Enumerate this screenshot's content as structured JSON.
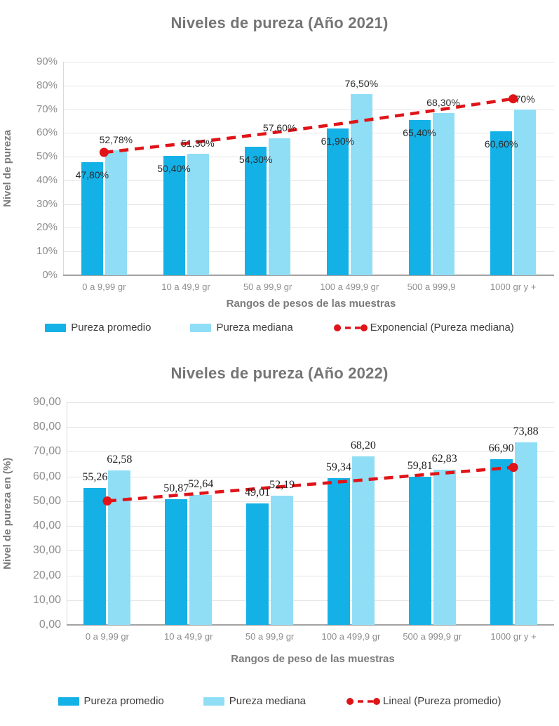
{
  "chart_data": [
    {
      "type": "bar-with-trendline",
      "title": "Niveles de pureza (Año 2021)",
      "ylabel": "Nivel de pureza",
      "xlabel": "Rangos de pesos de las muestras",
      "ylim": [
        0,
        90
      ],
      "yticks": [
        "0%",
        "10%",
        "20%",
        "30%",
        "40%",
        "50%",
        "60%",
        "70%",
        "80%",
        "90%"
      ],
      "grid": "horizontal",
      "legend_position": "bottom",
      "categories": [
        "0 a 9,99 gr",
        "10 a 49,9 gr",
        "50 a 99,9 gr",
        "100 a 499,9 gr",
        "500 a 999,9",
        "1000 gr y +"
      ],
      "series": [
        {
          "name": "Pureza promedio",
          "color": "#14b1e7",
          "values": [
            47.8,
            50.4,
            54.3,
            61.9,
            65.4,
            60.6
          ],
          "labels": [
            "47,80%",
            "50,40%",
            "54,30%",
            "61,90%",
            "65,40%",
            "60,60%"
          ],
          "label_pos": "inside-top"
        },
        {
          "name": "Pureza mediana",
          "color": "#90def5",
          "values": [
            52.78,
            51.3,
            57.6,
            76.5,
            68.3,
            70.0
          ],
          "labels": [
            "52,78%",
            "51,30%",
            "57,60%",
            "76,50%",
            "68,30%",
            "70%"
          ],
          "label_pos": "above"
        }
      ],
      "trendline": {
        "name": "Exponencial (Pureza mediana)",
        "color": "#e01418",
        "values": [
          51.8,
          55.6,
          59.8,
          64.4,
          69.3,
          74.4
        ]
      }
    },
    {
      "type": "bar-with-trendline",
      "title": "Niveles de pureza (Año 2022)",
      "ylabel": "Nivel de pureza en (%)",
      "xlabel": "Rangos de peso de las muestras",
      "ylim": [
        0,
        90
      ],
      "yticks": [
        "0,00",
        "10,00",
        "20,00",
        "30,00",
        "40,00",
        "50,00",
        "60,00",
        "70,00",
        "80,00",
        "90,00"
      ],
      "grid": "horizontal",
      "legend_position": "bottom",
      "categories": [
        "0 a 9,99 gr",
        "10 a 49,9 gr",
        "50 a 99,9 gr",
        "100 a 499,9 gr",
        "500 a 999,9 gr",
        "1000 gr y +"
      ],
      "series": [
        {
          "name": "Pureza promedio",
          "color": "#14b1e7",
          "values": [
            55.26,
            50.87,
            49.01,
            59.34,
            59.81,
            66.9
          ],
          "labels": [
            "55,26",
            "50,87",
            "49,01",
            "59,34",
            "59,81",
            "66,90"
          ],
          "label_pos": "above"
        },
        {
          "name": "Pureza mediana",
          "color": "#90def5",
          "values": [
            62.58,
            52.64,
            52.19,
            68.2,
            62.83,
            73.88
          ],
          "labels": [
            "62,58",
            "52,64",
            "52,19",
            "68,20",
            "62,83",
            "73,88"
          ],
          "label_pos": "above"
        }
      ],
      "trendline": {
        "name": "Lineal (Pureza promedio)",
        "color": "#e01418",
        "values": [
          50.1,
          52.8,
          55.5,
          58.2,
          61.0,
          63.7
        ]
      }
    }
  ]
}
